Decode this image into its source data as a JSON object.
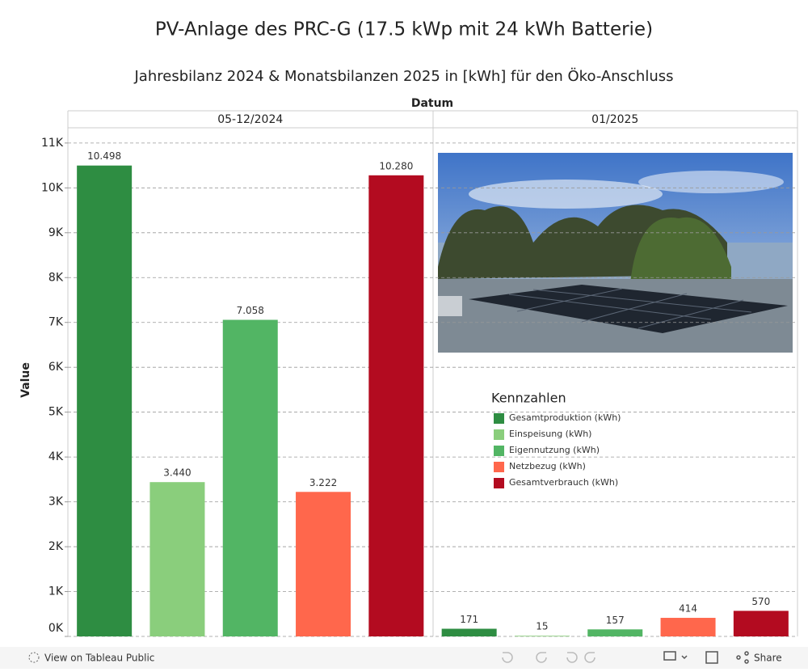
{
  "chart_data": {
    "type": "bar",
    "title": "PV-Anlage des PRC-G (17.5 kWp mit 24 kWh Batterie)",
    "subtitle": "Jahresbilanz 2024 & Monatsbilanzen 2025 in [kWh] für den Öko-Anschluss",
    "x_label": "Datum",
    "y_label": "Value",
    "categories": [
      "05-12/2024",
      "01/2025"
    ],
    "legend_title": "Kennzahlen",
    "series": [
      {
        "name": "Gesamtproduktion (kWh)",
        "color": "#2e8d42",
        "values": [
          10498,
          171
        ],
        "value_labels": [
          "10.498",
          "171"
        ]
      },
      {
        "name": "Einspeisung (kWh)",
        "color": "#8ace7c",
        "values": [
          3440,
          15
        ],
        "value_labels": [
          "3.440",
          "15"
        ]
      },
      {
        "name": "Eigennutzung (kWh)",
        "color": "#52b564",
        "values": [
          7058,
          157
        ],
        "value_labels": [
          "7.058",
          "157"
        ]
      },
      {
        "name": "Netzbezug (kWh)",
        "color": "#ff674c",
        "values": [
          3222,
          414
        ],
        "value_labels": [
          "3.222",
          "414"
        ]
      },
      {
        "name": "Gesamtverbrauch (kWh)",
        "color": "#b30b20",
        "values": [
          10280,
          570
        ],
        "value_labels": [
          "10.280",
          "570"
        ]
      }
    ],
    "ylim": [
      0,
      11340
    ],
    "yticks": [
      {
        "value": 0,
        "label": "0K"
      },
      {
        "value": 1000,
        "label": "1K"
      },
      {
        "value": 2000,
        "label": "2K"
      },
      {
        "value": 3000,
        "label": "3K"
      },
      {
        "value": 4000,
        "label": "4K"
      },
      {
        "value": 5000,
        "label": "5K"
      },
      {
        "value": 6000,
        "label": "6K"
      },
      {
        "value": 7000,
        "label": "7K"
      },
      {
        "value": 8000,
        "label": "8K"
      },
      {
        "value": 9000,
        "label": "9K"
      },
      {
        "value": 10000,
        "label": "10K"
      },
      {
        "value": 11000,
        "label": "11K"
      }
    ],
    "grid": true
  },
  "footer": {
    "view": "View on Tableau Public",
    "share": "Share"
  }
}
